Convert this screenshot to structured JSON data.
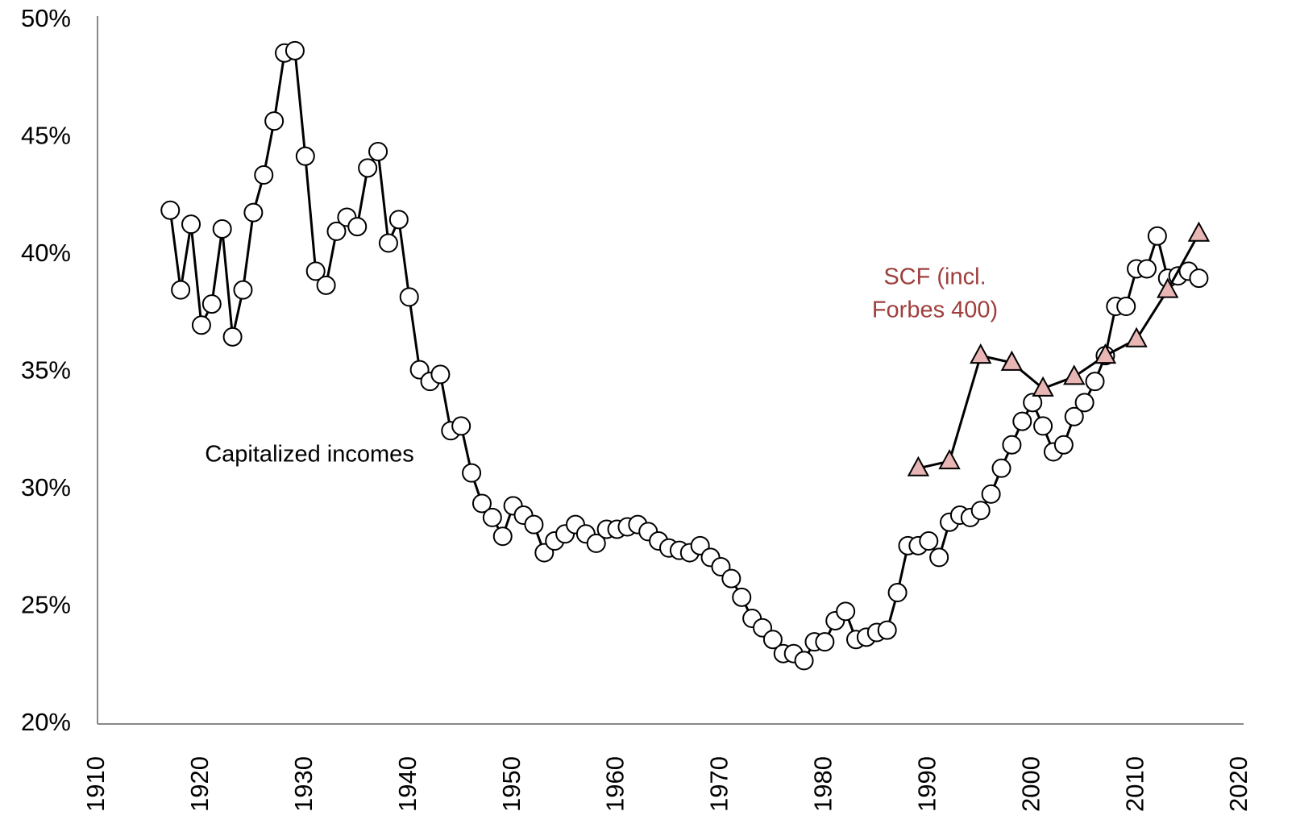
{
  "chart_data": {
    "type": "line",
    "xlim": [
      1910,
      2020
    ],
    "xticks": [
      1910,
      1920,
      1930,
      1940,
      1950,
      1960,
      1970,
      1980,
      1990,
      2000,
      2010,
      2020
    ],
    "ylim": [
      20,
      50
    ],
    "yticks": [
      {
        "value": 20,
        "label": "20%"
      },
      {
        "value": 25,
        "label": "25%"
      },
      {
        "value": 30,
        "label": "30%"
      },
      {
        "value": 35,
        "label": "35%"
      },
      {
        "value": 40,
        "label": "40%"
      },
      {
        "value": 45,
        "label": "45%"
      },
      {
        "value": 50,
        "label": "50%"
      }
    ],
    "grid": false,
    "series": [
      {
        "color": "#000000",
        "marker": "circle",
        "marker_fill": "#ffffff",
        "x": [
          1917,
          1918,
          1919,
          1920,
          1921,
          1922,
          1923,
          1924,
          1925,
          1926,
          1927,
          1928,
          1929,
          1930,
          1931,
          1932,
          1933,
          1934,
          1935,
          1936,
          1937,
          1938,
          1939,
          1940,
          1941,
          1942,
          1943,
          1944,
          1945,
          1946,
          1947,
          1948,
          1949,
          1950,
          1951,
          1952,
          1953,
          1954,
          1955,
          1956,
          1957,
          1958,
          1959,
          1960,
          1961,
          1962,
          1963,
          1964,
          1965,
          1966,
          1967,
          1968,
          1969,
          1970,
          1971,
          1972,
          1973,
          1974,
          1975,
          1976,
          1977,
          1978,
          1979,
          1980,
          1981,
          1982,
          1983,
          1984,
          1985,
          1986,
          1987,
          1988,
          1989,
          1990,
          1991,
          1992,
          1993,
          1994,
          1995,
          1996,
          1997,
          1998,
          1999,
          2000,
          2001,
          2002,
          2003,
          2004,
          2005,
          2006,
          2007,
          2008,
          2009,
          2010,
          2011,
          2012,
          2013,
          2014,
          2015,
          2016
        ],
        "values": [
          41.9,
          38.5,
          41.3,
          37.0,
          37.9,
          41.1,
          36.5,
          38.5,
          41.8,
          43.4,
          45.7,
          48.6,
          48.7,
          44.2,
          39.3,
          38.7,
          41.0,
          41.6,
          41.2,
          43.7,
          44.4,
          40.5,
          41.5,
          38.2,
          35.1,
          34.6,
          34.9,
          32.5,
          32.7,
          30.7,
          29.4,
          28.8,
          28.0,
          29.3,
          28.9,
          28.5,
          27.3,
          27.8,
          28.1,
          28.5,
          28.1,
          27.7,
          28.3,
          28.3,
          28.4,
          28.5,
          28.2,
          27.8,
          27.5,
          27.4,
          27.3,
          27.6,
          27.1,
          26.7,
          26.2,
          25.4,
          24.5,
          24.1,
          23.6,
          23.0,
          23.0,
          22.7,
          23.5,
          23.5,
          24.4,
          24.8,
          23.6,
          23.7,
          23.9,
          24.0,
          25.6,
          27.6,
          27.6,
          27.8,
          27.1,
          28.6,
          28.9,
          28.8,
          29.1,
          29.8,
          30.9,
          31.9,
          32.9,
          33.7,
          32.7,
          31.6,
          31.9,
          33.1,
          33.7,
          34.6,
          35.7,
          37.8,
          37.8,
          39.4,
          39.4,
          40.8,
          39.0,
          39.1,
          39.3,
          39.0
        ]
      },
      {
        "color": "#000000",
        "marker": "triangle",
        "marker_fill": "#e8b6b4",
        "x": [
          1989,
          1992,
          1995,
          1998,
          2001,
          2004,
          2007,
          2010,
          2013,
          2016
        ],
        "values": [
          30.9,
          31.2,
          35.7,
          35.4,
          34.3,
          34.8,
          35.7,
          36.4,
          38.5,
          40.9
        ]
      }
    ],
    "annotations": [
      {
        "lines": [
          "Capitalized incomes"
        ],
        "color": "#000000"
      },
      {
        "lines": [
          "SCF (incl.",
          "Forbes 400)"
        ],
        "color": "#9e3f3d"
      }
    ]
  }
}
